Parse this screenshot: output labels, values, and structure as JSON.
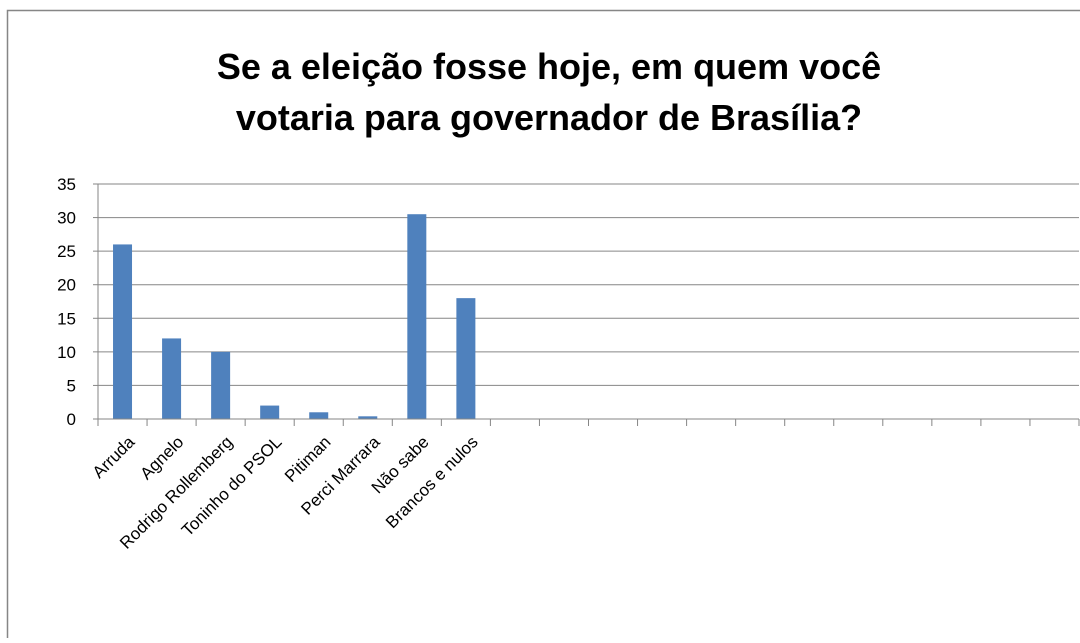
{
  "chart_data": {
    "type": "bar",
    "title_lines": [
      "Se a eleição fosse hoje, em quem você",
      "votaria para governador de Brasília?"
    ],
    "categories": [
      "Arruda",
      "Agnelo",
      "Rodrigo Rollemberg",
      "Toninho do PSOL",
      "Pitiman",
      "Perci Marrara",
      "Não sabe",
      "Brancos e nulos",
      "",
      "",
      "",
      "",
      "",
      "",
      "",
      "",
      "",
      "",
      "",
      ""
    ],
    "values": [
      26,
      12,
      10,
      2,
      1,
      0.4,
      30.5,
      18,
      null,
      null,
      null,
      null,
      null,
      null,
      null,
      null,
      null,
      null,
      null,
      null
    ],
    "ylim": [
      0,
      35
    ],
    "yticks": [
      0,
      5,
      10,
      15,
      20,
      25,
      30,
      35
    ],
    "grid": true,
    "bar_color": "#4F81BD"
  }
}
